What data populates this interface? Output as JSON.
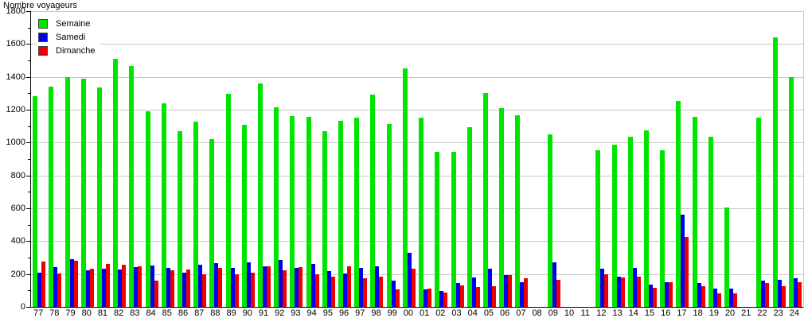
{
  "title": "Nombre voyageurs",
  "legend": {
    "items": [
      {
        "label": "Semaine",
        "color": "#00E500"
      },
      {
        "label": "Samedi",
        "color": "#0000EE"
      },
      {
        "label": "Dimanche",
        "color": "#EE0000"
      }
    ]
  },
  "chart_data": {
    "type": "bar",
    "title": "Nombre voyageurs",
    "ylabel": "Nombre voyageurs",
    "xlabel": "",
    "ylim": [
      0,
      1800
    ],
    "ytick_step": 200,
    "minor_tick_step": 100,
    "grid": true,
    "legend_position": "top-left",
    "categories": [
      "77",
      "78",
      "79",
      "80",
      "81",
      "82",
      "83",
      "84",
      "85",
      "86",
      "87",
      "88",
      "89",
      "90",
      "91",
      "92",
      "93",
      "94",
      "95",
      "96",
      "97",
      "98",
      "99",
      "00",
      "01",
      "02",
      "03",
      "04",
      "05",
      "06",
      "07",
      "08",
      "09",
      "10",
      "11",
      "12",
      "13",
      "14",
      "15",
      "16",
      "17",
      "18",
      "19",
      "20",
      "21",
      "22",
      "23",
      "24"
    ],
    "series": [
      {
        "name": "Semaine",
        "color": "#00E500",
        "values": [
          1280,
          1340,
          1400,
          1390,
          1335,
          1510,
          1465,
          1190,
          1240,
          1070,
          1125,
          1020,
          1295,
          1110,
          1360,
          1215,
          1160,
          1155,
          1070,
          1130,
          1150,
          1290,
          1115,
          1450,
          1150,
          945,
          945,
          1095,
          1300,
          1210,
          1165,
          0,
          1050,
          0,
          0,
          955,
          985,
          1035,
          1075,
          955,
          1255,
          1155,
          1035,
          605,
          0,
          1150,
          1640,
          1400
        ]
      },
      {
        "name": "Samedi",
        "color": "#0000EE",
        "values": [
          210,
          240,
          290,
          222,
          230,
          228,
          240,
          250,
          235,
          210,
          255,
          265,
          235,
          270,
          245,
          285,
          235,
          260,
          220,
          205,
          235,
          245,
          160,
          330,
          105,
          95,
          145,
          180,
          230,
          195,
          148,
          0,
          270,
          0,
          0,
          230,
          185,
          235,
          135,
          150,
          560,
          145,
          112,
          110,
          0,
          160,
          165,
          175
        ]
      },
      {
        "name": "Dimanche",
        "color": "#EE0000",
        "values": [
          275,
          205,
          280,
          232,
          260,
          255,
          247,
          162,
          224,
          228,
          200,
          235,
          200,
          206,
          249,
          224,
          241,
          200,
          186,
          248,
          174,
          186,
          105,
          230,
          110,
          85,
          130,
          120,
          125,
          193,
          172,
          0,
          166,
          0,
          0,
          200,
          180,
          185,
          118,
          150,
          428,
          126,
          80,
          80,
          0,
          145,
          126,
          152
        ]
      }
    ]
  }
}
